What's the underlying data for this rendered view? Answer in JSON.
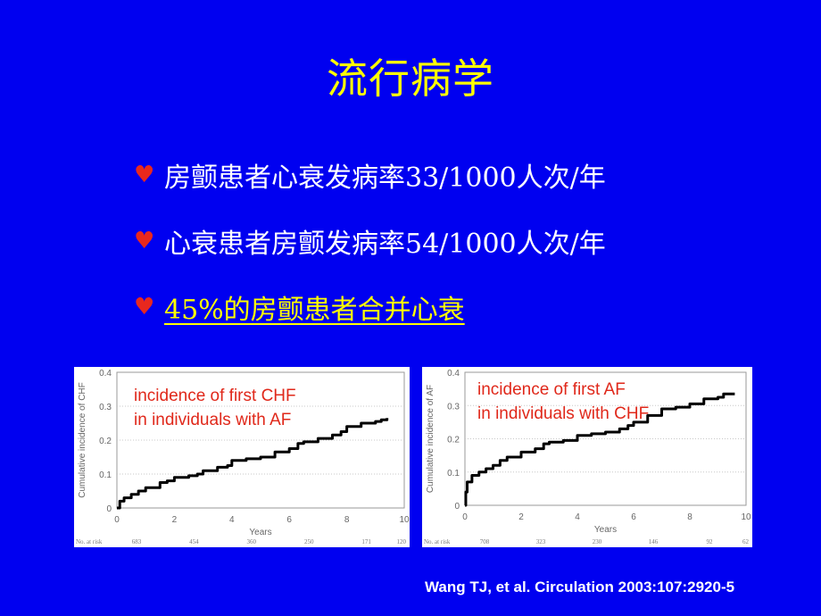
{
  "slide": {
    "title": "流行病学",
    "background": "#0000f0",
    "title_color": "#ffff00",
    "bullets": [
      {
        "icon": "♥",
        "text": "房颤患者心衰发病率33/1000人次/年",
        "highlight": false
      },
      {
        "icon": "♥",
        "text": "心衰患者房颤发病率54/1000人次/年",
        "highlight": false
      },
      {
        "icon": "♥",
        "text": "45%的房颤患者合并心衰",
        "highlight": true
      }
    ],
    "citation": "Wang TJ, et al. Circulation 2003:107:2920-5"
  },
  "chart_data": [
    {
      "type": "line",
      "title": "",
      "annotation": [
        "incidence of first CHF",
        "in individuals with AF"
      ],
      "xlabel": "Years",
      "ylabel": "Cumulative incidence of CHF",
      "xlim": [
        0,
        10
      ],
      "ylim": [
        0,
        0.4
      ],
      "x_ticks": [
        "0",
        "2",
        "4",
        "6",
        "8",
        "10"
      ],
      "y_ticks": [
        "0",
        "0.1",
        "0.2",
        "0.3",
        "0.4"
      ],
      "grid": true,
      "at_risk_label": "No. at risk",
      "at_risk": [
        "683",
        "454",
        "360",
        "250",
        "171",
        "120"
      ],
      "series": [
        {
          "name": "CHF in AF",
          "x": [
            0,
            0.1,
            0.25,
            0.5,
            0.75,
            1,
            1.5,
            1.75,
            2,
            2.5,
            2.8,
            3,
            3.5,
            3.85,
            4,
            4.5,
            5,
            5.5,
            6,
            6.3,
            6.5,
            7,
            7.5,
            7.8,
            8,
            8.5,
            9,
            9.2,
            9.4
          ],
          "y": [
            0,
            0.02,
            0.03,
            0.04,
            0.05,
            0.06,
            0.075,
            0.08,
            0.09,
            0.095,
            0.1,
            0.11,
            0.12,
            0.125,
            0.14,
            0.145,
            0.15,
            0.165,
            0.175,
            0.19,
            0.195,
            0.205,
            0.215,
            0.225,
            0.24,
            0.25,
            0.255,
            0.26,
            0.265
          ]
        }
      ]
    },
    {
      "type": "line",
      "title": "",
      "annotation": [
        "incidence of first AF",
        "in individuals with CHF"
      ],
      "xlabel": "Years",
      "ylabel": "Cumulative incidence of AF",
      "xlim": [
        0,
        10
      ],
      "ylim": [
        0,
        0.4
      ],
      "x_ticks": [
        "0",
        "2",
        "4",
        "6",
        "8",
        "10"
      ],
      "y_ticks": [
        "0",
        "0.1",
        "0.2",
        "0.3",
        "0.4"
      ],
      "grid": true,
      "at_risk_label": "No. at risk",
      "at_risk": [
        "708",
        "323",
        "230",
        "146",
        "92",
        "62"
      ],
      "series": [
        {
          "name": "AF in CHF",
          "x": [
            0,
            0.03,
            0.08,
            0.25,
            0.5,
            0.75,
            1,
            1.25,
            1.5,
            2,
            2.5,
            2.8,
            3,
            3.5,
            3.9,
            4,
            4.5,
            5,
            5.5,
            5.8,
            6,
            6.5,
            7,
            7.5,
            8,
            8.5,
            9,
            9.2,
            9.6
          ],
          "y": [
            0,
            0.04,
            0.07,
            0.09,
            0.1,
            0.11,
            0.12,
            0.135,
            0.145,
            0.16,
            0.17,
            0.185,
            0.19,
            0.195,
            0.195,
            0.21,
            0.215,
            0.22,
            0.23,
            0.24,
            0.25,
            0.27,
            0.29,
            0.295,
            0.305,
            0.32,
            0.325,
            0.335,
            0.335
          ]
        }
      ]
    }
  ]
}
